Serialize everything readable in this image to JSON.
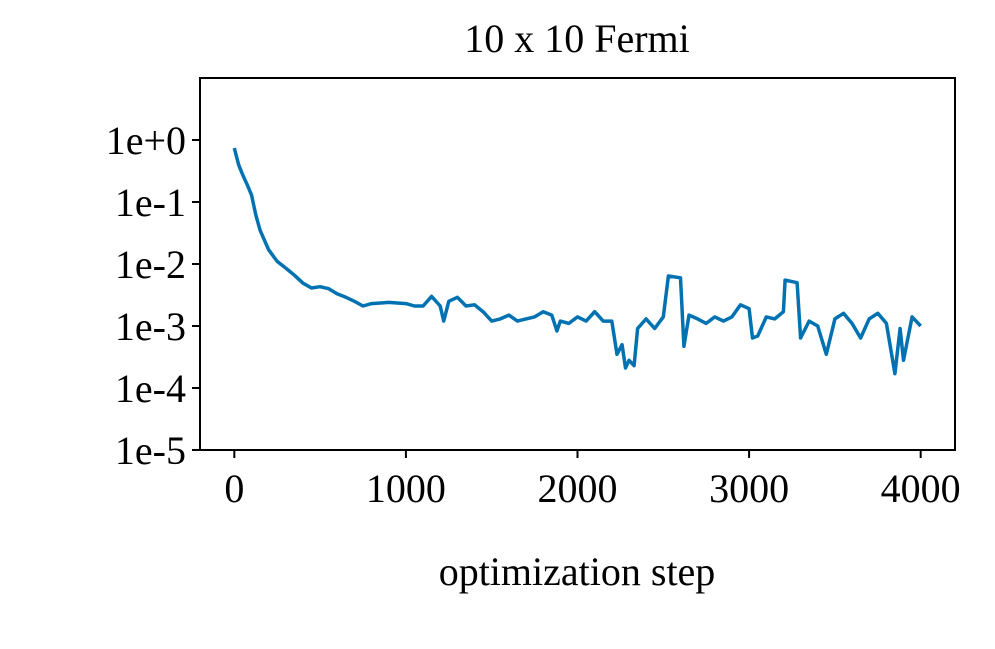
{
  "chart_data": {
    "type": "line",
    "title": "10 x 10 Fermi",
    "x_label": "optimization step",
    "yscale": "log",
    "grid": false,
    "xlim": [
      -200,
      4200
    ],
    "xticks": [
      0,
      1000,
      2000,
      3000,
      4000
    ],
    "ylim": [
      1e-05,
      10
    ],
    "yticks": [
      {
        "value": 1,
        "label": "1e+0"
      },
      {
        "value": 0.1,
        "label": "1e-1"
      },
      {
        "value": 0.01,
        "label": "1e-2"
      },
      {
        "value": 0.001,
        "label": "1e-3"
      },
      {
        "value": 0.0001,
        "label": "1e-4"
      },
      {
        "value": 1e-05,
        "label": "1e-5"
      }
    ],
    "x": [
      0,
      25,
      50,
      75,
      100,
      125,
      150,
      200,
      250,
      300,
      350,
      400,
      450,
      500,
      550,
      600,
      650,
      700,
      750,
      800,
      900,
      1000,
      1050,
      1100,
      1150,
      1200,
      1220,
      1250,
      1300,
      1350,
      1400,
      1450,
      1500,
      1550,
      1600,
      1650,
      1700,
      1750,
      1800,
      1850,
      1880,
      1900,
      1950,
      2000,
      2050,
      2100,
      2150,
      2200,
      2230,
      2260,
      2280,
      2300,
      2330,
      2350,
      2400,
      2450,
      2500,
      2530,
      2600,
      2620,
      2650,
      2700,
      2750,
      2800,
      2850,
      2900,
      2950,
      3000,
      3020,
      3050,
      3100,
      3150,
      3200,
      3210,
      3280,
      3300,
      3350,
      3400,
      3450,
      3500,
      3550,
      3600,
      3650,
      3700,
      3750,
      3800,
      3850,
      3880,
      3900,
      3950,
      4000
    ],
    "series": [
      {
        "color": "#0072b2",
        "values": [
          0.74,
          0.4,
          0.27,
          0.19,
          0.13,
          0.062,
          0.035,
          0.017,
          0.011,
          0.0086,
          0.0066,
          0.0049,
          0.0041,
          0.0043,
          0.004,
          0.0033,
          0.0029,
          0.0025,
          0.0021,
          0.0023,
          0.0024,
          0.0023,
          0.0021,
          0.0021,
          0.003,
          0.0021,
          0.0012,
          0.0025,
          0.0029,
          0.0021,
          0.0022,
          0.0017,
          0.0012,
          0.0013,
          0.0015,
          0.0012,
          0.0013,
          0.0014,
          0.0017,
          0.0015,
          0.00083,
          0.0012,
          0.0011,
          0.0014,
          0.0012,
          0.0017,
          0.0012,
          0.0012,
          0.00035,
          0.0005,
          0.00021,
          0.00028,
          0.00023,
          0.00091,
          0.0013,
          0.00091,
          0.0014,
          0.0064,
          0.006,
          0.00047,
          0.0015,
          0.0013,
          0.0011,
          0.0014,
          0.0012,
          0.0014,
          0.0022,
          0.0019,
          0.00064,
          0.00069,
          0.0014,
          0.0013,
          0.0017,
          0.0055,
          0.005,
          0.00064,
          0.0012,
          0.001,
          0.00035,
          0.0013,
          0.0016,
          0.0011,
          0.00064,
          0.0013,
          0.0016,
          0.0011,
          0.00017,
          0.00091,
          0.00028,
          0.0014,
          0.001
        ]
      }
    ]
  }
}
